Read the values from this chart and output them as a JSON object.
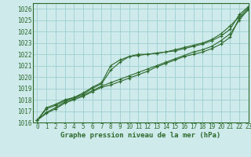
{
  "background_color": "#ceeaea",
  "grid_color": "#9ecece",
  "line_color": "#2d6a2d",
  "xlabel": "Graphe pression niveau de la mer (hPa)",
  "xlim": [
    -0.5,
    23
  ],
  "ylim": [
    1016,
    1026.5
  ],
  "yticks": [
    1016,
    1017,
    1018,
    1019,
    1020,
    1021,
    1022,
    1023,
    1024,
    1025,
    1026
  ],
  "xticks": [
    0,
    1,
    2,
    3,
    4,
    5,
    6,
    7,
    8,
    9,
    10,
    11,
    12,
    13,
    14,
    15,
    16,
    17,
    18,
    19,
    20,
    21,
    22,
    23
  ],
  "series": [
    [
      1016.2,
      1016.8,
      1017.2,
      1017.7,
      1018.0,
      1018.3,
      1018.7,
      1019.1,
      1019.3,
      1019.6,
      1019.9,
      1020.2,
      1020.5,
      1020.9,
      1021.2,
      1021.5,
      1021.8,
      1022.0,
      1022.2,
      1022.5,
      1022.9,
      1023.5,
      1025.2,
      1025.9
    ],
    [
      1016.2,
      1016.9,
      1017.3,
      1017.8,
      1018.1,
      1018.4,
      1018.8,
      1019.2,
      1019.5,
      1019.8,
      1020.1,
      1020.4,
      1020.7,
      1021.0,
      1021.3,
      1021.6,
      1021.9,
      1022.2,
      1022.4,
      1022.7,
      1023.2,
      1023.8,
      1025.0,
      1026.0
    ],
    [
      1016.2,
      1017.2,
      1017.5,
      1017.9,
      1018.2,
      1018.5,
      1019.0,
      1019.4,
      1020.6,
      1021.3,
      1021.8,
      1021.9,
      1022.0,
      1022.1,
      1022.2,
      1022.3,
      1022.5,
      1022.7,
      1022.9,
      1023.2,
      1023.6,
      1024.2,
      1025.5,
      1026.2
    ],
    [
      1016.2,
      1017.3,
      1017.6,
      1018.0,
      1018.2,
      1018.6,
      1019.1,
      1019.5,
      1021.0,
      1021.5,
      1021.8,
      1022.0,
      1022.0,
      1022.1,
      1022.2,
      1022.4,
      1022.6,
      1022.8,
      1023.0,
      1023.3,
      1023.8,
      1024.5,
      1025.3,
      1026.1
    ]
  ],
  "marker": "+",
  "markersize": 3.5,
  "linewidth": 0.8,
  "tick_fontsize": 5.5,
  "xlabel_fontsize": 6.5,
  "figsize": [
    3.2,
    2.0
  ],
  "dpi": 100
}
